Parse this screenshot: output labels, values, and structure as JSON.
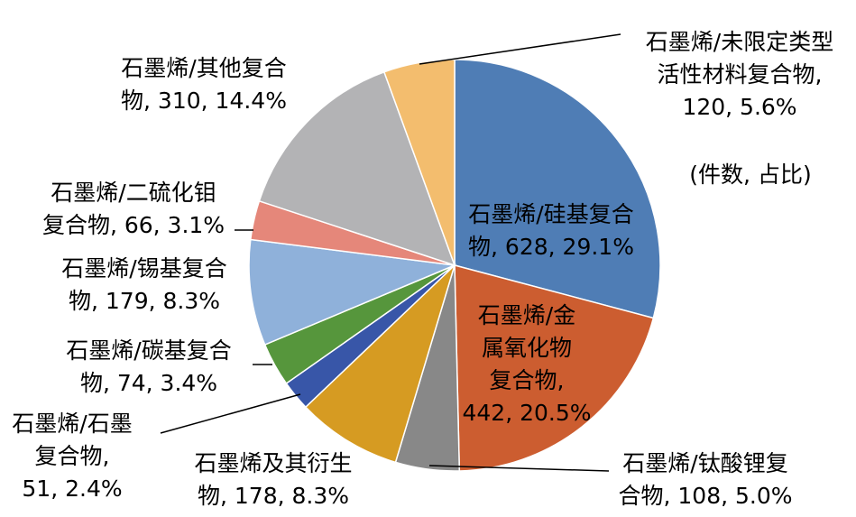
{
  "chart_data": {
    "type": "pie",
    "note": "(件数, 占比)",
    "slices": [
      {
        "name": "石墨烯/硅基复合物",
        "value": 628,
        "percent": "29.1%",
        "color": "#4f7db5",
        "label_lines": [
          "石墨烯/硅基复合",
          "物, 628, 29.1%"
        ]
      },
      {
        "name": "石墨烯/金属氧化物复合物",
        "value": 442,
        "percent": "20.5%",
        "color": "#cc5d30",
        "label_lines": [
          "石墨烯/金",
          "属氧化物",
          "复合物,",
          "442, 20.5%"
        ]
      },
      {
        "name": "石墨烯/钛酸锂复合物",
        "value": 108,
        "percent": "5.0%",
        "color": "#888888",
        "label_lines": [
          "石墨烯/钛酸锂复",
          "合物, 108, 5.0%"
        ]
      },
      {
        "name": "石墨烯及其衍生物",
        "value": 178,
        "percent": "8.3%",
        "color": "#d69b22",
        "label_lines": [
          "石墨烯及其衍生",
          "物, 178, 8.3%"
        ]
      },
      {
        "name": "石墨烯/石墨复合物",
        "value": 51,
        "percent": "2.4%",
        "color": "#3856a8",
        "label_lines": [
          "石墨烯/石墨",
          "复合物,",
          "51, 2.4%"
        ]
      },
      {
        "name": "石墨烯/碳基复合物",
        "value": 74,
        "percent": "3.4%",
        "color": "#56963c",
        "label_lines": [
          "石墨烯/碳基复合",
          "物, 74, 3.4%"
        ]
      },
      {
        "name": "石墨烯/锡基复合物",
        "value": 179,
        "percent": "8.3%",
        "color": "#8fb1da",
        "label_lines": [
          "石墨烯/锡基复合",
          "物, 179, 8.3%"
        ]
      },
      {
        "name": "石墨烯/二硫化钼复合物",
        "value": 66,
        "percent": "3.1%",
        "color": "#e5877a",
        "label_lines": [
          "石墨烯/二硫化钼",
          "复合物, 66, 3.1%"
        ]
      },
      {
        "name": "石墨烯/其他复合物",
        "value": 310,
        "percent": "14.4%",
        "color": "#b3b3b5",
        "label_lines": [
          "石墨烯/其他复合",
          "物, 310, 14.4%"
        ]
      },
      {
        "name": "石墨烯/未限定类型活性材料复合物",
        "value": 120,
        "percent": "5.6%",
        "color": "#f3bd6e",
        "label_lines": [
          "石墨烯/未限定类型",
          "活性材料复合物,",
          "120, 5.6%"
        ]
      }
    ]
  }
}
